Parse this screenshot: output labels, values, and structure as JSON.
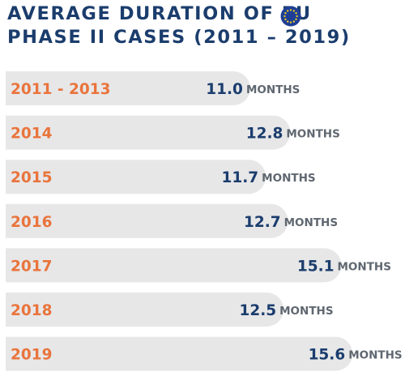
{
  "colors": {
    "title": "#1b3d6d",
    "value": "#1b3d6d",
    "unit": "#5f6770",
    "category": "#e9743c",
    "bar": "#e7e7e8",
    "flag_blue": "#1e3f95",
    "flag_star": "#f4d31c"
  },
  "header": {
    "title_line1": "AVERAGE DURATION OF EU",
    "title_line2": "PHASE II CASES (2011 – 2019)",
    "flag_icon": "eu-flag-icon"
  },
  "chart_data": {
    "type": "bar",
    "orientation": "horizontal",
    "title": "AVERAGE DURATION OF EU PHASE II CASES (2011 – 2019)",
    "categories": [
      "2011 - 2013",
      "2014",
      "2015",
      "2016",
      "2017",
      "2018",
      "2019"
    ],
    "values": [
      11.0,
      12.8,
      11.7,
      12.7,
      15.1,
      12.5,
      15.6
    ],
    "value_labels": [
      "11.0",
      "12.8",
      "11.7",
      "12.7",
      "15.1",
      "12.5",
      "15.6"
    ],
    "unit": "MONTHS",
    "xlabel": "",
    "ylabel": "",
    "grid": false,
    "legend": "none"
  }
}
